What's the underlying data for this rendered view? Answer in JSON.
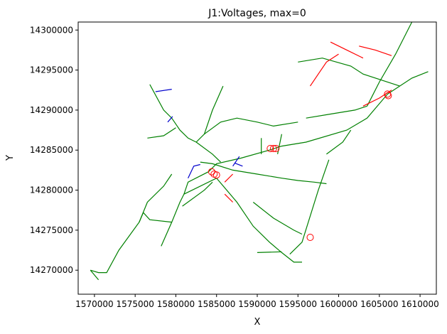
{
  "chart_data": {
    "type": "line",
    "title": "J1:Voltages, max=0",
    "xlabel": "X",
    "ylabel": "Y",
    "xlim": [
      1568000,
      1612000
    ],
    "ylim": [
      14267000,
      14301000
    ],
    "xticks": [
      1570000,
      1575000,
      1580000,
      1585000,
      1590000,
      1595000,
      1600000,
      1605000,
      1610000
    ],
    "yticks": [
      14270000,
      14275000,
      14280000,
      14285000,
      14290000,
      14295000,
      14300000
    ],
    "grid": false,
    "legend": "none",
    "colors": {
      "green": "#008000",
      "red": "#ff0000",
      "blue": "#0000cc"
    },
    "series": [
      {
        "color": "green",
        "lines": [
          [
            [
              1569500,
              14270000
            ],
            [
              1570500,
              14269700
            ],
            [
              1571500,
              14269700
            ],
            [
              1573000,
              14272500
            ],
            [
              1575500,
              14276000
            ],
            [
              1576000,
              14277200
            ],
            [
              1576800,
              14276300
            ],
            [
              1579500,
              14276000
            ]
          ],
          [
            [
              1569500,
              14270000
            ],
            [
              1570500,
              14268800
            ]
          ],
          [
            [
              1575500,
              14276000
            ],
            [
              1576500,
              14278500
            ],
            [
              1578500,
              14280500
            ],
            [
              1579500,
              14282000
            ]
          ],
          [
            [
              1578200,
              14273000
            ],
            [
              1579500,
              14276000
            ],
            [
              1580500,
              14278500
            ],
            [
              1581000,
              14279500
            ],
            [
              1581500,
              14281000
            ],
            [
              1584000,
              14282300
            ],
            [
              1585000,
              14283300
            ],
            [
              1588000,
              14284000
            ],
            [
              1591500,
              14285000
            ],
            [
              1593000,
              14285500
            ],
            [
              1596000,
              14286000
            ],
            [
              1601000,
              14287500
            ],
            [
              1603500,
              14289000
            ],
            [
              1606000,
              14292000
            ],
            [
              1609000,
              14294000
            ],
            [
              1611000,
              14294800
            ]
          ],
          [
            [
              1581000,
              14279500
            ],
            [
              1582000,
              14280000
            ],
            [
              1585000,
              14281500
            ],
            [
              1587500,
              14278500
            ],
            [
              1589500,
              14275500
            ],
            [
              1591500,
              14273500
            ],
            [
              1593000,
              14272200
            ],
            [
              1594500,
              14271000
            ],
            [
              1595500,
              14271000
            ]
          ],
          [
            [
              1580800,
              14278000
            ],
            [
              1583500,
              14280000
            ],
            [
              1584500,
              14281000
            ]
          ],
          [
            [
              1576800,
              14293200
            ],
            [
              1578500,
              14290000
            ],
            [
              1579500,
              14289000
            ],
            [
              1580500,
              14287500
            ],
            [
              1581500,
              14286500
            ],
            [
              1582500,
              14286000
            ]
          ],
          [
            [
              1576500,
              14286500
            ],
            [
              1578500,
              14286800
            ],
            [
              1580000,
              14287800
            ]
          ],
          [
            [
              1582500,
              14286000
            ],
            [
              1583500,
              14287000
            ],
            [
              1584500,
              14290000
            ],
            [
              1585800,
              14293000
            ]
          ],
          [
            [
              1583500,
              14287000
            ],
            [
              1585500,
              14288500
            ],
            [
              1587500,
              14289000
            ],
            [
              1590000,
              14288500
            ],
            [
              1592000,
              14288000
            ],
            [
              1595000,
              14288500
            ]
          ],
          [
            [
              1596000,
              14289000
            ],
            [
              1599000,
              14289500
            ],
            [
              1602000,
              14290000
            ],
            [
              1603500,
              14290500
            ]
          ],
          [
            [
              1582500,
              14286000
            ],
            [
              1584500,
              14284500
            ],
            [
              1585500,
              14283500
            ]
          ],
          [
            [
              1583000,
              14283500
            ],
            [
              1584500,
              14283300
            ],
            [
              1587000,
              14282500
            ],
            [
              1590000,
              14282000
            ],
            [
              1593000,
              14281500
            ],
            [
              1595000,
              14281200
            ],
            [
              1597000,
              14281000
            ],
            [
              1598500,
              14280800
            ]
          ],
          [
            [
              1589500,
              14278500
            ],
            [
              1592000,
              14276500
            ],
            [
              1594500,
              14275000
            ],
            [
              1595500,
              14274500
            ]
          ],
          [
            [
              1594000,
              14272000
            ],
            [
              1595500,
              14273500
            ],
            [
              1597500,
              14280000
            ],
            [
              1598800,
              14283800
            ]
          ],
          [
            [
              1590000,
              14272200
            ],
            [
              1593000,
              14272300
            ]
          ],
          [
            [
              1598500,
              14284500
            ],
            [
              1600500,
              14286000
            ],
            [
              1601500,
              14287500
            ]
          ],
          [
            [
              1595000,
              14296000
            ],
            [
              1598000,
              14296500
            ],
            [
              1601500,
              14295500
            ],
            [
              1603000,
              14294500
            ],
            [
              1607500,
              14293000
            ]
          ],
          [
            [
              1603500,
              14290500
            ],
            [
              1605000,
              14293500
            ],
            [
              1607000,
              14297000
            ],
            [
              1609000,
              14301000
            ]
          ],
          [
            [
              1592500,
              14284500
            ],
            [
              1593000,
              14287000
            ]
          ],
          [
            [
              1590500,
              14284500
            ],
            [
              1590500,
              14286500
            ]
          ]
        ]
      },
      {
        "color": "red",
        "lines": [
          [
            [
              1596500,
              14293000
            ],
            [
              1597500,
              14294500
            ],
            [
              1598500,
              14296000
            ],
            [
              1600000,
              14297000
            ]
          ],
          [
            [
              1599000,
              14298500
            ],
            [
              1601000,
              14297500
            ],
            [
              1603000,
              14296500
            ]
          ],
          [
            [
              1602500,
              14298000
            ],
            [
              1604500,
              14297500
            ],
            [
              1606500,
              14296800
            ]
          ],
          [
            [
              1603000,
              14290500
            ],
            [
              1605000,
              14291500
            ],
            [
              1606500,
              14292500
            ]
          ],
          [
            [
              1586000,
              14279500
            ],
            [
              1587000,
              14278500
            ]
          ],
          [
            [
              1586000,
              14281000
            ],
            [
              1587000,
              14282000
            ]
          ]
        ]
      },
      {
        "color": "blue",
        "lines": [
          [
            [
              1577500,
              14292300
            ],
            [
              1579500,
              14292600
            ]
          ],
          [
            [
              1579000,
              14288500
            ],
            [
              1579600,
              14289200
            ]
          ],
          [
            [
              1581500,
              14281500
            ],
            [
              1582200,
              14283000
            ],
            [
              1583000,
              14283200
            ]
          ],
          [
            [
              1587000,
              14283000
            ],
            [
              1587800,
              14284200
            ]
          ],
          [
            [
              1587200,
              14283400
            ],
            [
              1588200,
              14283000
            ]
          ]
        ]
      }
    ],
    "markers": [
      {
        "color": "red",
        "points": [
          [
            1591600,
            14285200
          ],
          [
            1592000,
            14285200
          ],
          [
            1592300,
            14285200
          ],
          [
            1584400,
            14282300
          ],
          [
            1584700,
            14282000
          ],
          [
            1585000,
            14281900
          ],
          [
            1606000,
            14292000
          ],
          [
            1606100,
            14291800
          ],
          [
            1596500,
            14274100
          ]
        ]
      }
    ]
  }
}
